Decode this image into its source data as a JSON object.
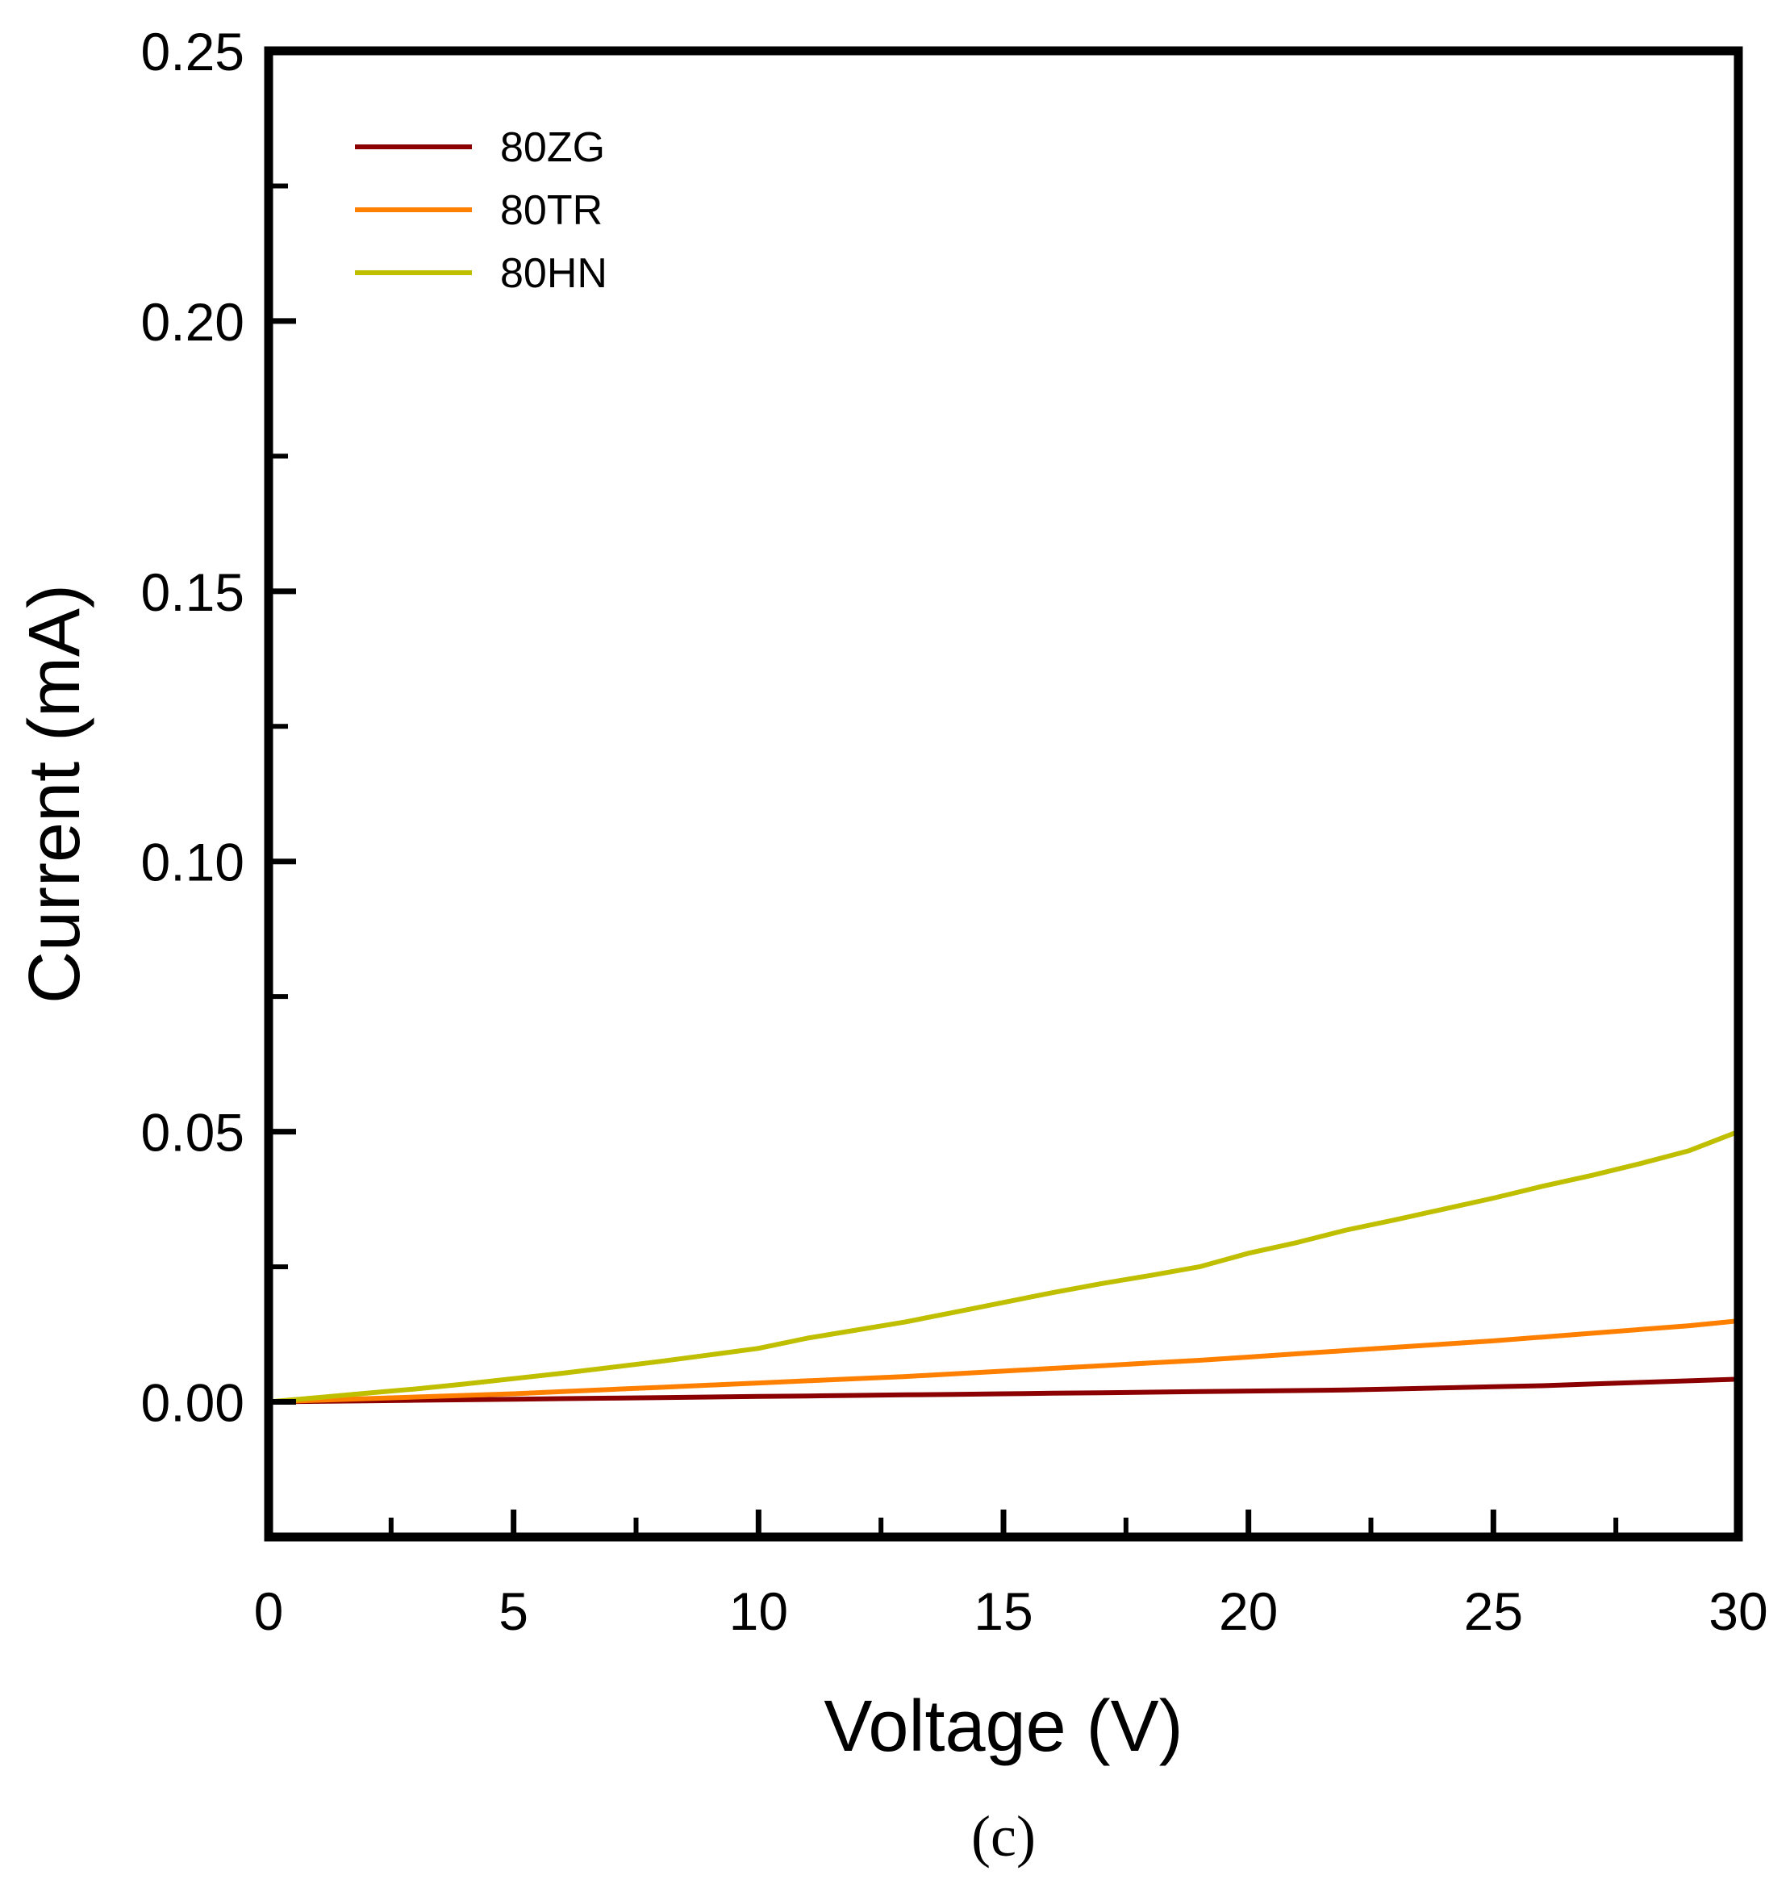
{
  "chart_data": {
    "type": "line",
    "title": "",
    "xlabel": "Voltage (V)",
    "ylabel": "Current (mA)",
    "xlim": [
      0,
      30
    ],
    "ylim": [
      -0.025,
      0.25
    ],
    "x_ticks": [
      0,
      5,
      10,
      15,
      20,
      25,
      30
    ],
    "x_tick_labels": [
      "0",
      "5",
      "10",
      "15",
      "20",
      "25",
      "30"
    ],
    "x_minor_ticks": [
      2.5,
      7.5,
      12.5,
      17.5,
      22.5,
      27.5
    ],
    "y_ticks": [
      0.0,
      0.05,
      0.1,
      0.15,
      0.2,
      0.25
    ],
    "y_tick_labels": [
      "0.00",
      "0.05",
      "0.10",
      "0.15",
      "0.20",
      "0.25"
    ],
    "y_minor_ticks": [
      0.025,
      0.075,
      0.125,
      0.175,
      0.225
    ],
    "grid": false,
    "legend_position": "top-left",
    "caption": "(c)",
    "x": [
      0,
      1,
      2,
      3,
      4,
      5,
      6,
      7,
      8,
      9,
      10,
      11,
      12,
      13,
      14,
      15,
      16,
      17,
      18,
      19,
      20,
      21,
      22,
      23,
      24,
      25,
      26,
      27,
      28,
      29,
      30
    ],
    "series": [
      {
        "name": "80ZG",
        "color": "#8b0000",
        "values": [
          0,
          0.0001,
          0.0002,
          0.0003,
          0.0004,
          0.0005,
          0.0006,
          0.0007,
          0.0008,
          0.0009,
          0.001,
          0.0011,
          0.0012,
          0.0013,
          0.0014,
          0.0015,
          0.0016,
          0.0017,
          0.0018,
          0.0019,
          0.002,
          0.0021,
          0.0022,
          0.0024,
          0.0026,
          0.0028,
          0.003,
          0.0033,
          0.0036,
          0.0039,
          0.0042
        ]
      },
      {
        "name": "80TR",
        "color": "#ff8000",
        "values": [
          0,
          0.0003,
          0.0006,
          0.0009,
          0.0012,
          0.0015,
          0.0019,
          0.0023,
          0.0027,
          0.0031,
          0.0035,
          0.0039,
          0.0043,
          0.0047,
          0.0052,
          0.0057,
          0.0062,
          0.0067,
          0.0072,
          0.0077,
          0.0083,
          0.0089,
          0.0095,
          0.0101,
          0.0107,
          0.0113,
          0.012,
          0.0127,
          0.0134,
          0.0141,
          0.015
        ]
      },
      {
        "name": "80HN",
        "color": "#bfbf00",
        "values": [
          0,
          0.0008,
          0.0016,
          0.0024,
          0.0033,
          0.0043,
          0.0053,
          0.0064,
          0.0075,
          0.0087,
          0.0099,
          0.0118,
          0.0133,
          0.0148,
          0.0166,
          0.0184,
          0.0202,
          0.0219,
          0.0234,
          0.025,
          0.0275,
          0.0295,
          0.0318,
          0.0337,
          0.0357,
          0.0377,
          0.0399,
          0.0419,
          0.0441,
          0.0465,
          0.05
        ]
      }
    ]
  }
}
